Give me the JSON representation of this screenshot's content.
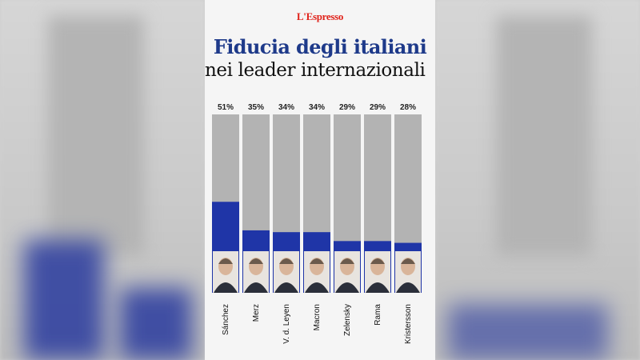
{
  "logo": "L'Espresso",
  "header": {
    "title": "Fiducia degli italiani",
    "subtitle": "nei leader internazionali"
  },
  "colors": {
    "bar_fill": "#1f35a7",
    "bar_track": "#b3b3b3",
    "title": "#1e3a8a",
    "logo": "#e0231b"
  },
  "chart_data": {
    "type": "bar",
    "title": "Fiducia degli italiani nei leader internazionali",
    "categories": [
      "Sánchez",
      "Merz",
      "V. d. Leyen",
      "Macron",
      "Zelensky",
      "Rama",
      "Kristersson"
    ],
    "values": [
      51,
      35,
      34,
      34,
      29,
      29,
      28
    ],
    "value_labels": [
      "51%",
      "35%",
      "34%",
      "34%",
      "29%",
      "29%",
      "28%"
    ],
    "unit": "%",
    "ylim": [
      0,
      100
    ],
    "grid": false,
    "legend": "none"
  }
}
